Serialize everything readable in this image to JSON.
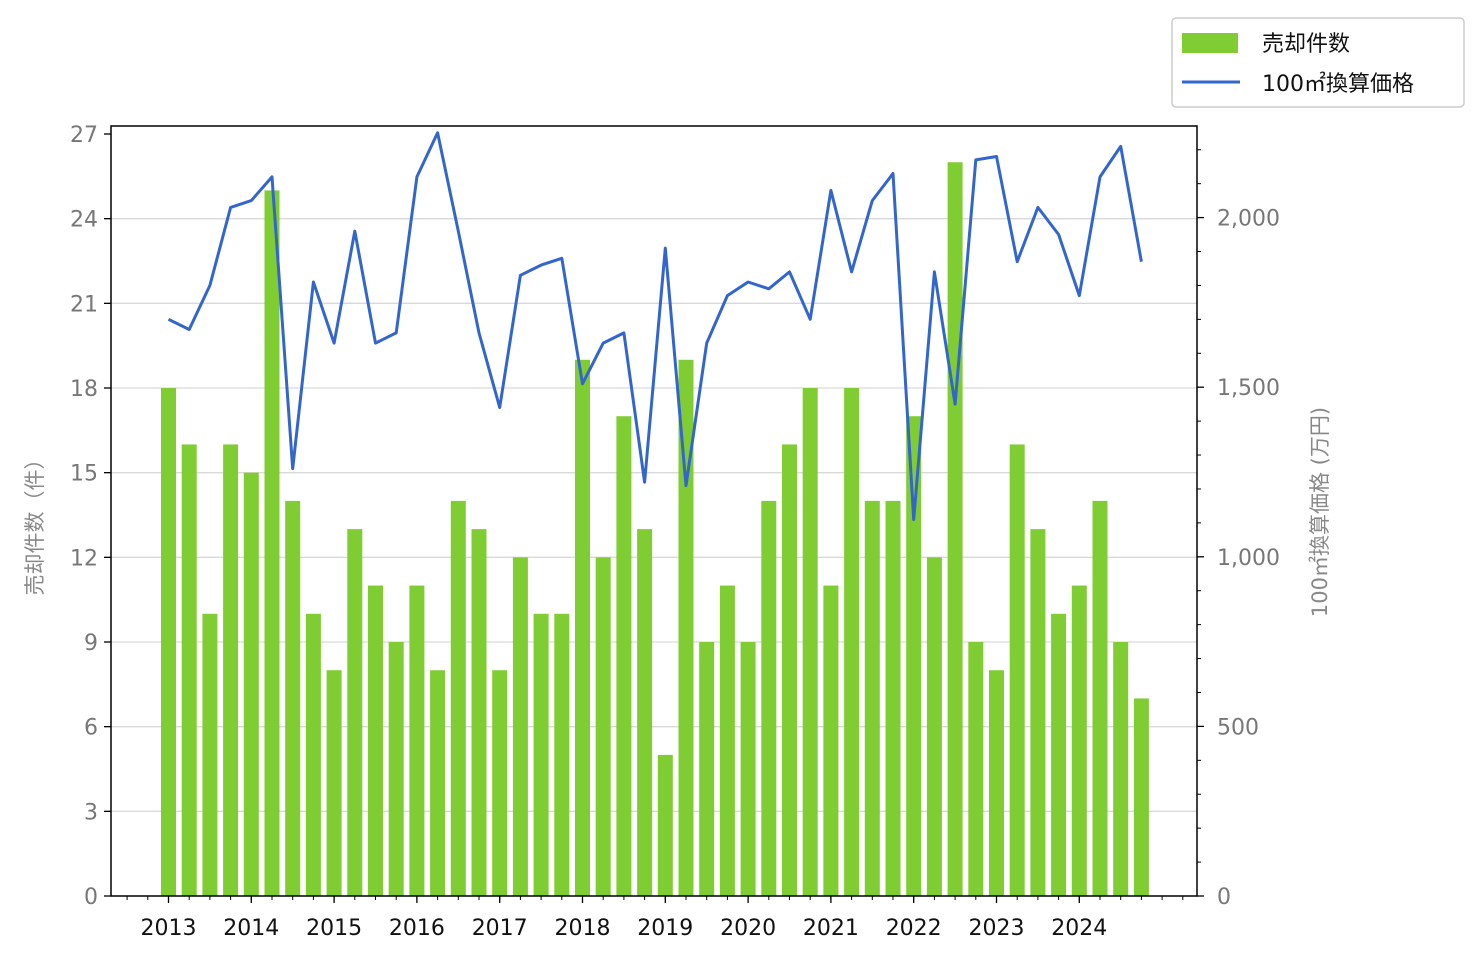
{
  "chart_data": {
    "type": "bar",
    "x_tick_labels": [
      "2013",
      "2014",
      "2015",
      "2016",
      "2017",
      "2018",
      "2019",
      "2020",
      "2021",
      "2022",
      "2023",
      "2024"
    ],
    "ylabel_left": "売却件数（件）",
    "ylabel_right": "100㎡換算価格 (万円)",
    "ylim_left": [
      0,
      27
    ],
    "ylim_right": [
      0,
      2270
    ],
    "yticks_left": [
      0,
      3,
      6,
      9,
      12,
      15,
      18,
      21,
      24,
      27
    ],
    "yticks_right": [
      0,
      500,
      1000,
      1500,
      2000
    ],
    "yticks_right_labels": [
      "0",
      "500",
      "1,000",
      "1,500",
      "2,000"
    ],
    "grid": "horizontal",
    "legend_position": "top-right",
    "series": [
      {
        "name": "売却件数",
        "type": "bar",
        "color": "#80cc33",
        "axis": "left",
        "values": [
          18,
          16,
          10,
          16,
          15,
          25,
          14,
          10,
          8,
          13,
          11,
          9,
          11,
          8,
          14,
          13,
          8,
          12,
          10,
          10,
          19,
          12,
          17,
          13,
          5,
          19,
          9,
          11,
          9,
          14,
          16,
          18,
          11,
          18,
          14,
          14,
          17,
          12,
          26,
          9,
          8,
          16,
          13,
          10,
          11,
          14,
          9,
          7
        ]
      },
      {
        "name": "100㎡換算価格",
        "type": "line",
        "color": "#3366cc",
        "axis": "right",
        "values": [
          1700,
          1670,
          1800,
          2030,
          2050,
          2120,
          1260,
          1810,
          1630,
          1960,
          1630,
          1660,
          2120,
          2250,
          1960,
          1660,
          1440,
          1830,
          1860,
          1880,
          1510,
          1630,
          1660,
          1220,
          1910,
          1210,
          1630,
          1770,
          1810,
          1790,
          1840,
          1700,
          2080,
          1840,
          2050,
          2130,
          1110,
          1840,
          1450,
          2170,
          2180,
          1870,
          2030,
          1950,
          1770,
          2120,
          2210,
          1870
        ]
      }
    ]
  }
}
